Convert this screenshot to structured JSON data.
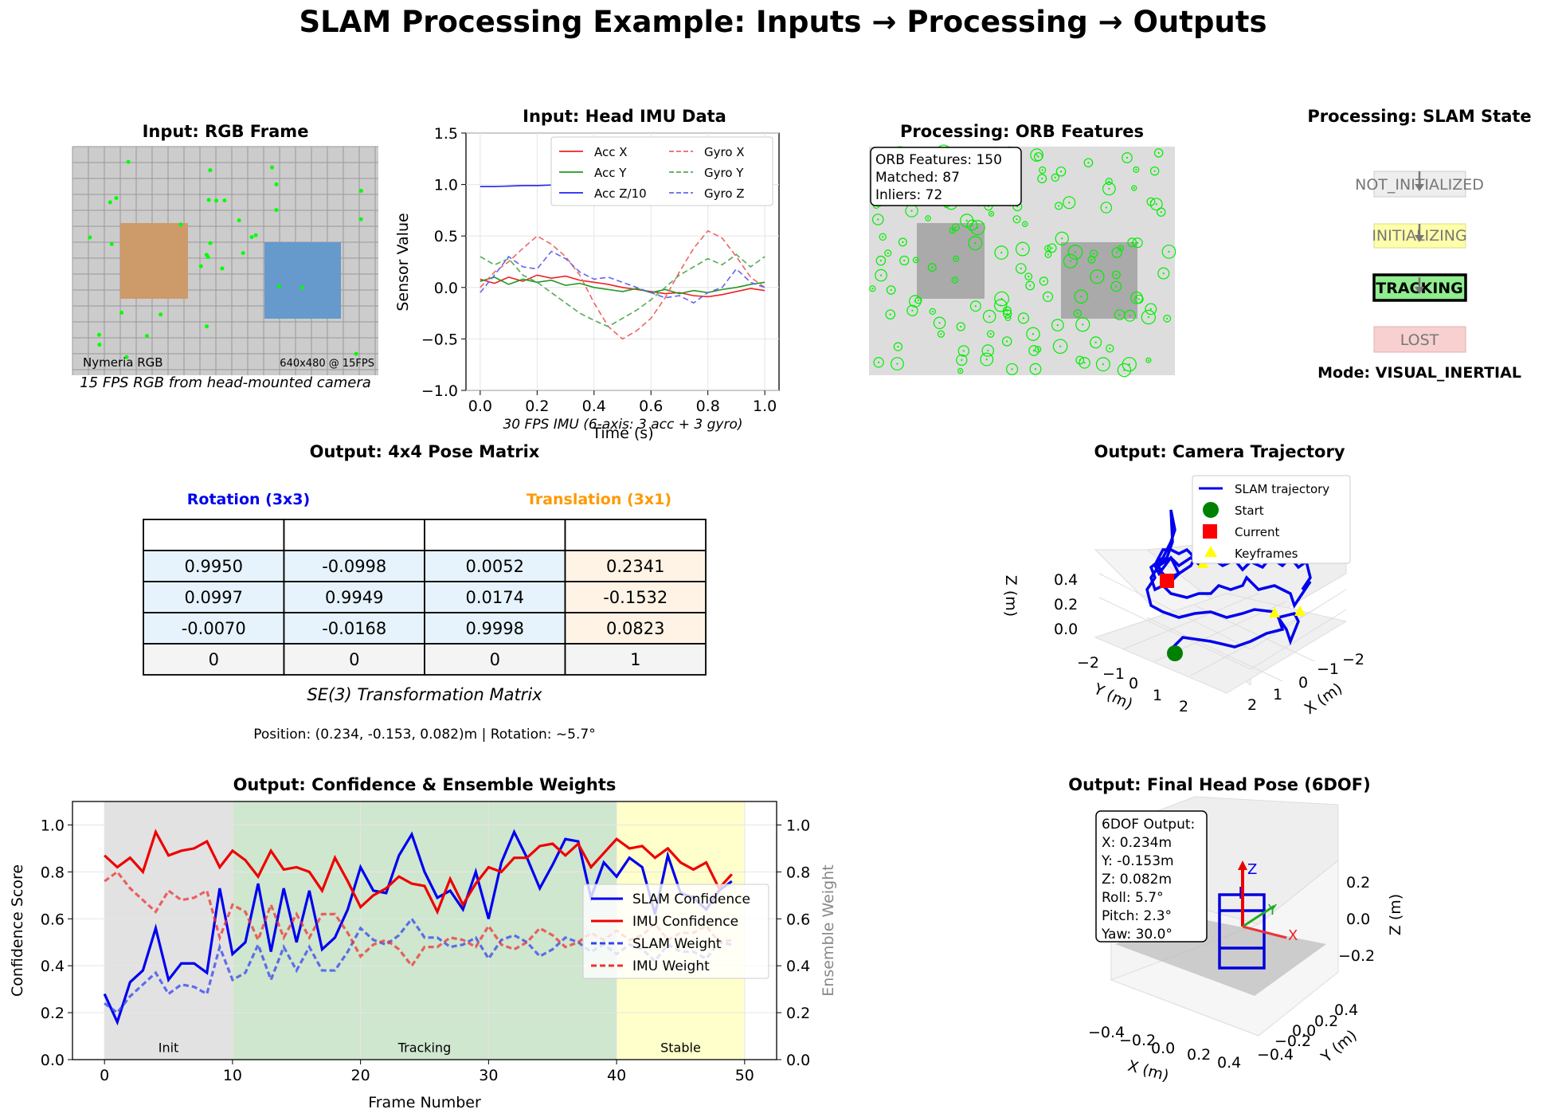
{
  "suptitle": "SLAM Processing Example: Inputs → Processing → Outputs",
  "rgb_panel": {
    "title": "Input: RGB Frame",
    "label_left": "Nymeria RGB",
    "label_right": "640x480 @ 15FPS",
    "caption": "15 FPS RGB from head-mounted camera",
    "colors": {
      "grid_bg": "#cccccc",
      "orange_box": "#cd9a6a",
      "blue_box": "#6699cc",
      "features": "#00ff00"
    }
  },
  "imu_panel": {
    "title": "Input: Head IMU Data",
    "caption": "30 FPS IMU (6-axis: 3 acc + 3 gyro)"
  },
  "orb_panel": {
    "title": "Processing: ORB Features",
    "info": [
      "ORB Features: 150",
      "Matched: 87",
      "Inliers: 72"
    ]
  },
  "state_panel": {
    "title": "Processing: SLAM State",
    "states": [
      {
        "label": "NOT_INITIALIZED",
        "color": "#eeeeee",
        "active": false
      },
      {
        "label": "INITIALIZING",
        "color": "#ffffaa",
        "active": false
      },
      {
        "label": "TRACKING",
        "color": "#90ee90",
        "active": true
      },
      {
        "label": "LOST",
        "color": "#f8d0d0",
        "active": false
      }
    ],
    "mode": "Mode: VISUAL_INERTIAL"
  },
  "pose_panel": {
    "title": "Output: 4x4 Pose Matrix",
    "rotation_label": "Rotation (3x3)",
    "translation_label": "Translation (3x1)",
    "matrix": [
      [
        "0.9950",
        "-0.0998",
        "0.0052",
        "0.2341"
      ],
      [
        "0.0997",
        "0.9949",
        "0.0174",
        "-0.1532"
      ],
      [
        "-0.0070",
        "-0.0168",
        "0.9998",
        "0.0823"
      ],
      [
        "0",
        "0",
        "0",
        "1"
      ]
    ],
    "caption": "SE(3) Transformation Matrix",
    "summary": "Position: (0.234, -0.153, 0.082)m | Rotation: ~5.7°"
  },
  "traj_panel": {
    "title": "Output: Camera Trajectory",
    "legend": [
      "SLAM trajectory",
      "Start",
      "Current",
      "Keyframes"
    ],
    "xlabel": "X (m)",
    "ylabel": "Y (m)",
    "zlabel": "Z (m)",
    "x_ticks": [
      "−2",
      "−1",
      "0",
      "1",
      "2"
    ],
    "y_ticks": [
      "−2",
      "−1",
      "0",
      "1",
      "2"
    ],
    "z_ticks": [
      "0.0",
      "0.2",
      "0.4"
    ]
  },
  "head_panel": {
    "title": "Output: Final Head Pose (6DOF)",
    "info": [
      "6DOF Output:",
      "X: 0.234m",
      "Y: -0.153m",
      "Z: 0.082m",
      "Roll: 5.7°",
      "Pitch: 2.3°",
      "Yaw: 30.0°"
    ],
    "xlabel": "X (m)",
    "ylabel": "Y (m)",
    "zlabel": "Z (m)",
    "x_ticks": [
      "−0.4",
      "−0.2",
      "0.0",
      "0.2",
      "0.4"
    ],
    "y_ticks": [
      "−0.4",
      "−0.2",
      "0.0",
      "0.2",
      "0.4"
    ],
    "z_ticks": [
      "0.2",
      "0.0",
      "−0.2"
    ],
    "axis_labels": [
      "X",
      "Y",
      "Z"
    ]
  },
  "chart_data": [
    {
      "type": "line",
      "title": "Input: Head IMU Data",
      "xlabel": "Time (s)",
      "ylabel": "Sensor Value",
      "xlim": [
        -0.05,
        1.05
      ],
      "ylim": [
        -1.0,
        1.5
      ],
      "x_ticks": [
        "0.0",
        "0.2",
        "0.4",
        "0.6",
        "0.8",
        "1.0"
      ],
      "y_ticks": [
        "−1.0",
        "−0.5",
        "0.0",
        "0.5",
        "1.0",
        "1.5"
      ],
      "grid": true,
      "legend_position": "top-right",
      "x": [
        0.0,
        0.05,
        0.1,
        0.15,
        0.2,
        0.25,
        0.3,
        0.35,
        0.4,
        0.45,
        0.5,
        0.55,
        0.6,
        0.65,
        0.7,
        0.75,
        0.8,
        0.85,
        0.9,
        0.95,
        1.0
      ],
      "series": [
        {
          "name": "Acc X",
          "color": "#ee2222",
          "dash": false,
          "values": [
            0.08,
            0.04,
            0.1,
            0.06,
            0.12,
            0.09,
            0.11,
            0.07,
            0.05,
            0.03,
            0.0,
            -0.02,
            -0.04,
            -0.06,
            -0.05,
            -0.08,
            -0.09,
            -0.07,
            -0.04,
            -0.01,
            -0.03
          ]
        },
        {
          "name": "Acc Y",
          "color": "#229922",
          "dash": false,
          "values": [
            0.06,
            0.1,
            0.03,
            0.08,
            0.05,
            0.07,
            0.02,
            0.04,
            0.0,
            -0.02,
            -0.04,
            -0.01,
            -0.05,
            -0.02,
            -0.06,
            -0.03,
            -0.05,
            -0.02,
            0.0,
            0.03,
            0.05
          ]
        },
        {
          "name": "Acc Z/10",
          "color": "#2222ee",
          "dash": false,
          "values": [
            0.98,
            0.98,
            0.985,
            0.99,
            0.99,
            0.995,
            0.99,
            0.985,
            0.99,
            0.98,
            0.985,
            0.98,
            0.99,
            0.985,
            0.98,
            0.99,
            0.985,
            0.98,
            0.99,
            0.985,
            0.98
          ]
        },
        {
          "name": "Gyro X",
          "color": "#ee6666",
          "dash": true,
          "values": [
            0.0,
            0.15,
            0.25,
            0.38,
            0.5,
            0.42,
            0.3,
            0.12,
            -0.15,
            -0.38,
            -0.5,
            -0.42,
            -0.3,
            -0.1,
            0.15,
            0.38,
            0.55,
            0.48,
            0.3,
            0.1,
            0.0
          ]
        },
        {
          "name": "Gyro Y",
          "color": "#55aa55",
          "dash": true,
          "values": [
            0.3,
            0.22,
            0.28,
            0.12,
            0.05,
            -0.05,
            -0.15,
            -0.25,
            -0.32,
            -0.38,
            -0.3,
            -0.22,
            -0.12,
            0.0,
            0.12,
            0.2,
            0.28,
            0.22,
            0.32,
            0.2,
            0.3
          ]
        },
        {
          "name": "Gyro Z",
          "color": "#6666ee",
          "dash": true,
          "values": [
            -0.05,
            0.12,
            0.3,
            0.2,
            0.18,
            0.35,
            0.28,
            0.15,
            0.08,
            0.1,
            0.05,
            0.0,
            -0.05,
            -0.1,
            -0.08,
            -0.15,
            -0.05,
            0.0,
            0.18,
            0.05,
            0.0
          ]
        }
      ]
    },
    {
      "type": "line",
      "title": "Output: Confidence & Ensemble Weights",
      "xlabel": "Frame Number",
      "ylabel": "Confidence Score",
      "y2label": "Ensemble Weight",
      "xlim": [
        -2.5,
        52.5
      ],
      "ylim": [
        0.0,
        1.1
      ],
      "y2lim": [
        0.0,
        1.1
      ],
      "x_ticks": [
        "0",
        "10",
        "20",
        "30",
        "40",
        "50"
      ],
      "y_ticks": [
        "0.0",
        "0.2",
        "0.4",
        "0.6",
        "0.8",
        "1.0"
      ],
      "grid": true,
      "legend_position": "center-right",
      "regions": [
        {
          "label": "Init",
          "from": 0,
          "to": 10,
          "color": "#e2e2e2"
        },
        {
          "label": "Tracking",
          "from": 10,
          "to": 40,
          "color": "#cfe6cf"
        },
        {
          "label": "Stable",
          "from": 40,
          "to": 50,
          "color": "#ffffcc"
        }
      ],
      "x": [
        0,
        1,
        2,
        3,
        4,
        5,
        6,
        7,
        8,
        9,
        10,
        11,
        12,
        13,
        14,
        15,
        16,
        17,
        18,
        19,
        20,
        21,
        22,
        23,
        24,
        25,
        26,
        27,
        28,
        29,
        30,
        31,
        32,
        33,
        34,
        35,
        36,
        37,
        38,
        39,
        40,
        41,
        42,
        43,
        44,
        45,
        46,
        47,
        48,
        49
      ],
      "series": [
        {
          "name": "SLAM Confidence",
          "color": "#0000ee",
          "dash": false,
          "values": [
            0.28,
            0.16,
            0.33,
            0.38,
            0.56,
            0.34,
            0.41,
            0.41,
            0.37,
            0.73,
            0.45,
            0.5,
            0.75,
            0.46,
            0.73,
            0.5,
            0.72,
            0.47,
            0.52,
            0.64,
            0.82,
            0.72,
            0.71,
            0.87,
            0.96,
            0.8,
            0.69,
            0.72,
            0.64,
            0.8,
            0.6,
            0.84,
            0.97,
            0.86,
            0.73,
            0.83,
            0.94,
            0.93,
            0.69,
            0.84,
            0.78,
            0.86,
            0.82,
            0.62,
            0.87,
            0.71,
            0.69,
            0.64,
            0.72,
            0.76
          ]
        },
        {
          "name": "IMU Confidence",
          "color": "#ee0000",
          "dash": false,
          "values": [
            0.87,
            0.82,
            0.86,
            0.8,
            0.97,
            0.87,
            0.89,
            0.9,
            0.93,
            0.82,
            0.89,
            0.85,
            0.78,
            0.89,
            0.81,
            0.82,
            0.8,
            0.72,
            0.86,
            0.76,
            0.65,
            0.7,
            0.73,
            0.78,
            0.75,
            0.74,
            0.63,
            0.77,
            0.66,
            0.75,
            0.82,
            0.8,
            0.86,
            0.86,
            0.91,
            0.92,
            0.87,
            0.92,
            0.82,
            0.88,
            0.94,
            0.9,
            0.91,
            0.86,
            0.9,
            0.84,
            0.81,
            0.84,
            0.73,
            0.79
          ]
        },
        {
          "name": "SLAM Weight",
          "color": "#3344ee",
          "dash": true,
          "axis": "right",
          "values": [
            0.24,
            0.2,
            0.27,
            0.32,
            0.37,
            0.28,
            0.32,
            0.31,
            0.28,
            0.48,
            0.34,
            0.37,
            0.49,
            0.34,
            0.48,
            0.38,
            0.48,
            0.38,
            0.38,
            0.46,
            0.56,
            0.51,
            0.49,
            0.53,
            0.6,
            0.52,
            0.52,
            0.48,
            0.49,
            0.52,
            0.43,
            0.51,
            0.53,
            0.5,
            0.44,
            0.47,
            0.52,
            0.5,
            0.46,
            0.49,
            0.45,
            0.49,
            0.47,
            0.42,
            0.49,
            0.46,
            0.46,
            0.43,
            0.5,
            0.49
          ]
        },
        {
          "name": "IMU Weight",
          "color": "#ee3333",
          "dash": true,
          "axis": "right",
          "values": [
            0.76,
            0.8,
            0.73,
            0.68,
            0.63,
            0.72,
            0.68,
            0.69,
            0.72,
            0.52,
            0.66,
            0.63,
            0.51,
            0.66,
            0.52,
            0.62,
            0.52,
            0.62,
            0.62,
            0.54,
            0.44,
            0.49,
            0.51,
            0.47,
            0.4,
            0.48,
            0.48,
            0.52,
            0.51,
            0.48,
            0.57,
            0.49,
            0.47,
            0.5,
            0.56,
            0.53,
            0.48,
            0.5,
            0.54,
            0.51,
            0.55,
            0.51,
            0.53,
            0.58,
            0.51,
            0.54,
            0.54,
            0.57,
            0.5,
            0.51
          ]
        }
      ]
    }
  ]
}
